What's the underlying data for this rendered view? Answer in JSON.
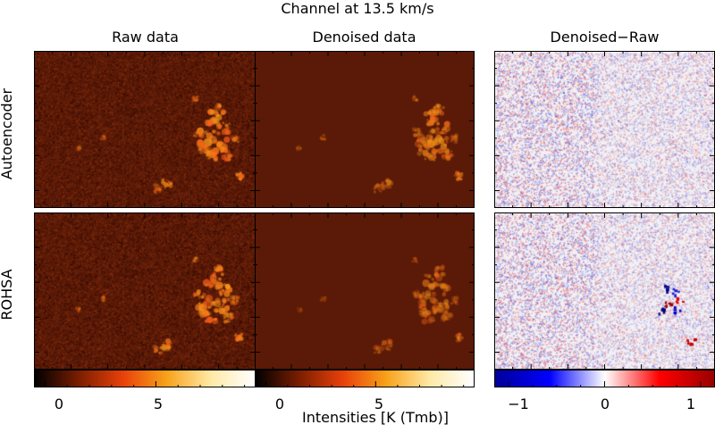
{
  "title": "Channel at 13.5 km/s",
  "columns": [
    "Raw data",
    "Denoised data",
    "Denoised−Raw"
  ],
  "rows": [
    "Autoencoder",
    "ROHSA"
  ],
  "intensity_colorbar": {
    "ticks": [
      "0",
      "5"
    ],
    "range": [
      -0.5,
      9.5
    ],
    "colormap": "black-red-orange-yellow-white",
    "colors": [
      "#000000",
      "#7a1e00",
      "#e8400a",
      "#f8a21a",
      "#ffe9a6",
      "#ffffff"
    ]
  },
  "residual_colorbar": {
    "ticks": [
      "−1",
      "0",
      "1"
    ],
    "range": [
      -1.15,
      1.15
    ],
    "colormap": "blue-white-red",
    "colors": [
      "#00009a",
      "#0000ff",
      "#ffffff",
      "#ff0000",
      "#9a0000"
    ]
  },
  "xlabel": "Intensities [K (Tmb)]",
  "panel_background": "#5a1a07",
  "residual_background": "#f2f0f4"
}
